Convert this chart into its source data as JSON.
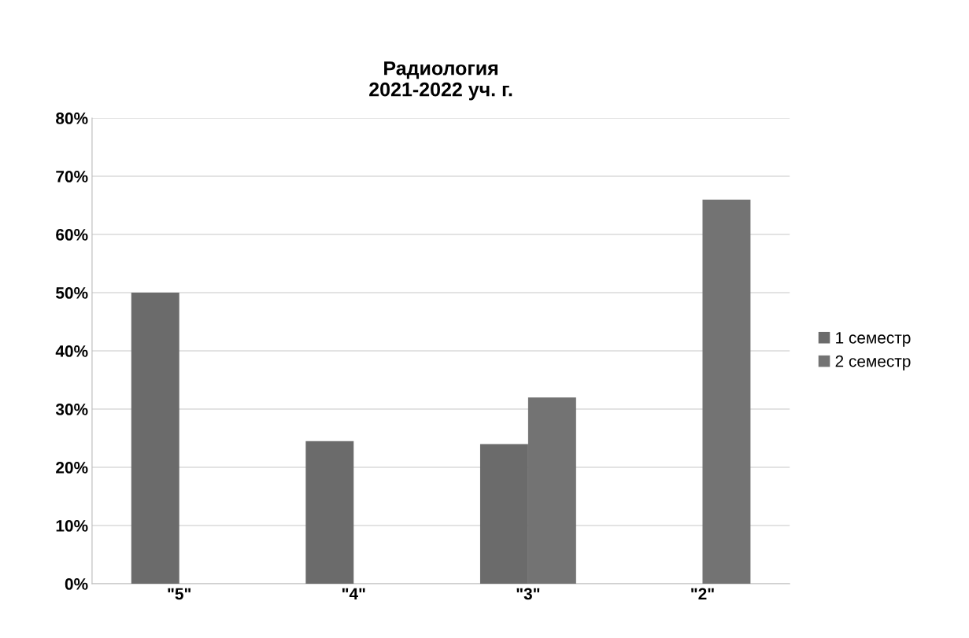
{
  "chart_data": {
    "type": "bar",
    "title": "Радиология\n2021-2022 уч. г.",
    "categories": [
      "\"5\"",
      "\"4\"",
      "\"3\"",
      "\"2\""
    ],
    "series": [
      {
        "name": "1 семестр",
        "color": "#6b6b6b",
        "values": [
          50,
          24.5,
          24,
          0
        ]
      },
      {
        "name": "2 семестр",
        "color": "#737373",
        "values": [
          0,
          0,
          32,
          66
        ]
      }
    ],
    "ylim": [
      0,
      80
    ],
    "yticks": [
      {
        "value": 0,
        "label": "0%"
      },
      {
        "value": 10,
        "label": "10%"
      },
      {
        "value": 20,
        "label": "20%"
      },
      {
        "value": 30,
        "label": "30%"
      },
      {
        "value": 40,
        "label": "40%"
      },
      {
        "value": 50,
        "label": "50%"
      },
      {
        "value": 60,
        "label": "60%"
      },
      {
        "value": 70,
        "label": "70%"
      },
      {
        "value": 80,
        "label": "80%"
      }
    ],
    "grid": "y",
    "legend": "right"
  }
}
